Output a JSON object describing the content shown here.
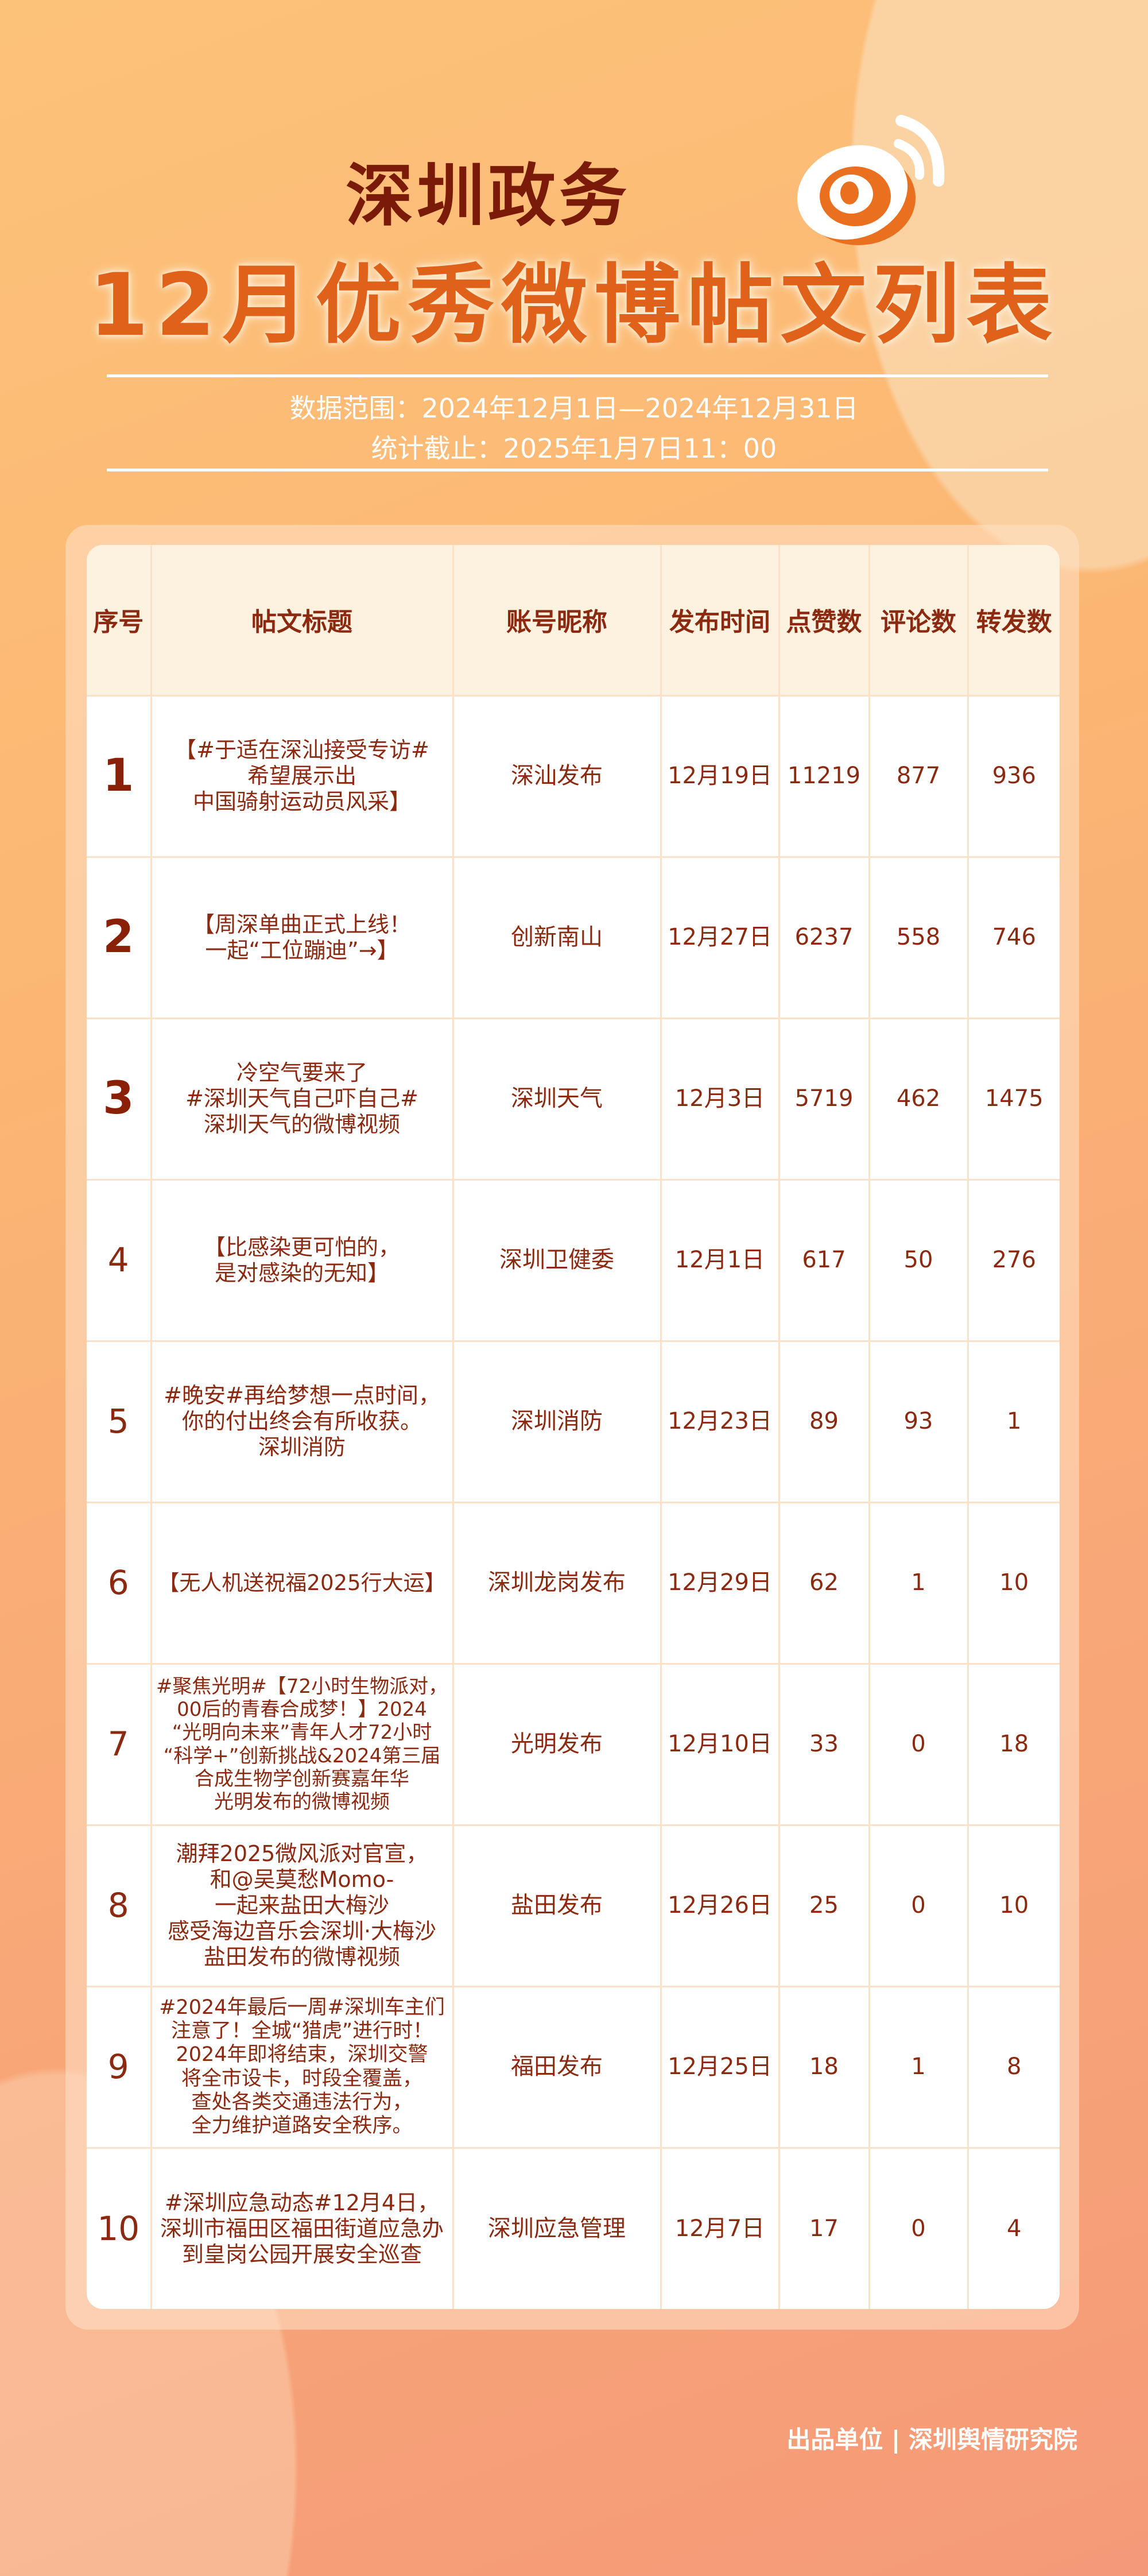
{
  "header": {
    "line1": "深圳政务",
    "line2": "12月优秀微博帖文列表",
    "range": "数据范围：2024年12月1日—2024年12月31日",
    "cutoff": "统计截止：2025年1月7日11：00",
    "logo": "weibo-logo"
  },
  "colors": {
    "title_dark": "#7a1a08",
    "title_orange": "#e0621a",
    "text": "#8b2a10",
    "header_bg": "#fdf1df"
  },
  "table": {
    "columns": [
      "序号",
      "帖文标题",
      "账号昵称",
      "发布时间",
      "点赞数",
      "评论数",
      "转发数"
    ],
    "rows": [
      {
        "rank": "1",
        "title": "【#于适在深汕接受专访#\n希望展示出\n中国骑射运动员风采】",
        "account": "深汕发布",
        "date": "12月19日",
        "likes": "11219",
        "comments": "877",
        "reposts": "936"
      },
      {
        "rank": "2",
        "title": "【周深单曲正式上线！\n一起“工位蹦迪”→】",
        "account": "创新南山",
        "date": "12月27日",
        "likes": "6237",
        "comments": "558",
        "reposts": "746"
      },
      {
        "rank": "3",
        "title": "冷空气要来了\n#深圳天气自己吓自己#\n深圳天气的微博视频",
        "account": "深圳天气",
        "date": "12月3日",
        "likes": "5719",
        "comments": "462",
        "reposts": "1475"
      },
      {
        "rank": "4",
        "title": "【比感染更可怕的，\n是对感染的无知】",
        "account": "深圳卫健委",
        "date": "12月1日",
        "likes": "617",
        "comments": "50",
        "reposts": "276"
      },
      {
        "rank": "5",
        "title": "#晚安#再给梦想一点时间，\n你的付出终会有所收获。\n深圳消防",
        "account": "深圳消防",
        "date": "12月23日",
        "likes": "89",
        "comments": "93",
        "reposts": "1"
      },
      {
        "rank": "6",
        "title": "【无人机送祝福2025行大运】",
        "account": "深圳龙岗发布",
        "date": "12月29日",
        "likes": "62",
        "comments": "1",
        "reposts": "10"
      },
      {
        "rank": "7",
        "title": "#聚焦光明#【72小时生物派对，\n00后的青春合成梦！】2024\n“光明向未来”青年人才72小时\n“科学+”创新挑战&2024第三届\n合成生物学创新赛嘉年华\n光明发布的微博视频",
        "account": "光明发布",
        "date": "12月10日",
        "likes": "33",
        "comments": "0",
        "reposts": "18"
      },
      {
        "rank": "8",
        "title": "潮拜2025微风派对官宣，\n和@吴莫愁Momo-\n一起来盐田大梅沙\n感受海边音乐会深圳·大梅沙\n盐田发布的微博视频",
        "account": "盐田发布",
        "date": "12月26日",
        "likes": "25",
        "comments": "0",
        "reposts": "10"
      },
      {
        "rank": "9",
        "title": "#2024年最后一周#深圳车主们\n注意了！全城“猎虎”进行时！\n2024年即将结束，深圳交警\n将全市设卡，时段全覆盖，\n查处各类交通违法行为，\n全力维护道路安全秩序。",
        "account": "福田发布",
        "date": "12月25日",
        "likes": "18",
        "comments": "1",
        "reposts": "8"
      },
      {
        "rank": "10",
        "title": "#深圳应急动态#12月4日，\n深圳市福田区福田街道应急办\n到皇岗公园开展安全巡查",
        "account": "深圳应急管理",
        "date": "12月7日",
        "likes": "17",
        "comments": "0",
        "reposts": "4"
      }
    ]
  },
  "footer": "出品单位 | 深圳舆情研究院"
}
